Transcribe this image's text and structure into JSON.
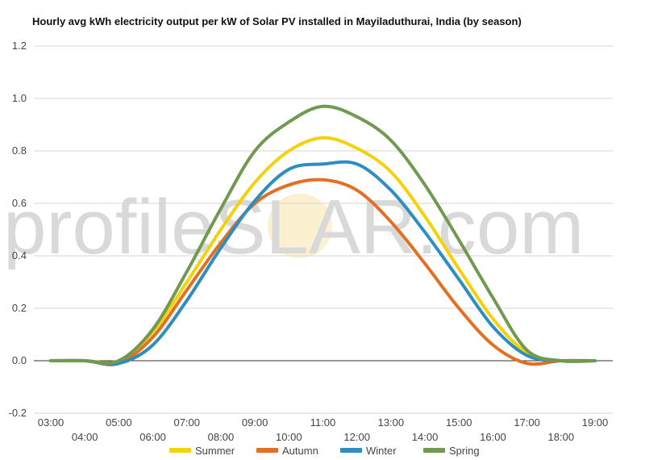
{
  "watermark": {
    "left": "profile",
    "mid": "S",
    "right": "LAR.com"
  },
  "colors": {
    "Summer": "#f5d10a",
    "Autumn": "#e26f22",
    "Winter": "#2d8ec1",
    "Spring": "#6f9a4f"
  },
  "chart_data": {
    "type": "line",
    "title": "Hourly avg kWh electricity output per kW of Solar PV installed in Mayiladuthurai, India (by season)",
    "xlabel": "",
    "ylabel": "",
    "ylim": [
      -0.2,
      1.2
    ],
    "yticks": [
      -0.2,
      0.0,
      0.2,
      0.4,
      0.6,
      0.8,
      1.0,
      1.2
    ],
    "ytick_labels": [
      "-0.2",
      "0.0",
      "0.2",
      "0.4",
      "0.6",
      "0.8",
      "1.0",
      "1.2"
    ],
    "x": [
      "03:00",
      "04:00",
      "05:00",
      "06:00",
      "07:00",
      "08:00",
      "09:00",
      "10:00",
      "11:00",
      "12:00",
      "13:00",
      "14:00",
      "15:00",
      "16:00",
      "17:00",
      "18:00",
      "19:00"
    ],
    "grid": true,
    "legend": "bottom",
    "series": [
      {
        "name": "Summer",
        "values": [
          0.0,
          0.0,
          0.0,
          0.11,
          0.3,
          0.5,
          0.68,
          0.8,
          0.85,
          0.81,
          0.72,
          0.55,
          0.35,
          0.16,
          0.03,
          0.0,
          0.0
        ]
      },
      {
        "name": "Autumn",
        "values": [
          0.0,
          0.0,
          -0.01,
          0.09,
          0.27,
          0.45,
          0.6,
          0.67,
          0.69,
          0.65,
          0.53,
          0.37,
          0.2,
          0.06,
          -0.01,
          0.0,
          0.0
        ]
      },
      {
        "name": "Winter",
        "values": [
          0.0,
          0.0,
          -0.01,
          0.06,
          0.23,
          0.43,
          0.61,
          0.73,
          0.75,
          0.75,
          0.65,
          0.49,
          0.31,
          0.13,
          0.02,
          0.0,
          0.0
        ]
      },
      {
        "name": "Spring",
        "values": [
          0.0,
          0.0,
          0.0,
          0.12,
          0.34,
          0.58,
          0.8,
          0.91,
          0.97,
          0.93,
          0.84,
          0.67,
          0.46,
          0.24,
          0.04,
          0.0,
          0.0
        ]
      }
    ]
  }
}
